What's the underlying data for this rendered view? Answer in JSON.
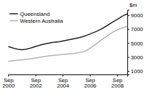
{
  "chart_data": {
    "type": "line",
    "y_label": "$m",
    "categories": [
      "Sep\n2000",
      null,
      null,
      null,
      null,
      null,
      null,
      null,
      "Sep\n2002",
      null,
      null,
      null,
      null,
      null,
      null,
      null,
      "Sep\n2004",
      null,
      null,
      null,
      null,
      null,
      null,
      null,
      "Sep\n2006",
      null,
      null,
      null,
      null,
      null,
      null,
      null,
      "Sep\n2008",
      null,
      null,
      null
    ],
    "series": [
      {
        "name": "Queensland",
        "color": "#1a1a1a",
        "values": [
          4500,
          4350,
          4200,
          4100,
          4050,
          4100,
          4200,
          4350,
          4500,
          4650,
          4800,
          4900,
          5000,
          5100,
          5150,
          5200,
          5300,
          5400,
          5500,
          5600,
          5700,
          5800,
          5950,
          6100,
          6300,
          6500,
          6700,
          6950,
          7200,
          7500,
          7800,
          8100,
          8400,
          8700,
          9000,
          9200
        ]
      },
      {
        "name": "Western Australia",
        "color": "#b0b0b0",
        "values": [
          2400,
          2450,
          2500,
          2550,
          2600,
          2650,
          2700,
          2780,
          2860,
          2940,
          3020,
          3100,
          3180,
          3230,
          3280,
          3330,
          3380,
          3420,
          3460,
          3500,
          3560,
          3640,
          3750,
          3950,
          4250,
          4600,
          4950,
          5300,
          5650,
          6000,
          6350,
          6650,
          6900,
          7100,
          7250,
          7400
        ]
      }
    ],
    "ylim": [
      500,
      9800
    ],
    "yticks": [
      1000,
      3000,
      5000,
      7000,
      9000
    ],
    "grid": false,
    "legend": "upper left"
  }
}
